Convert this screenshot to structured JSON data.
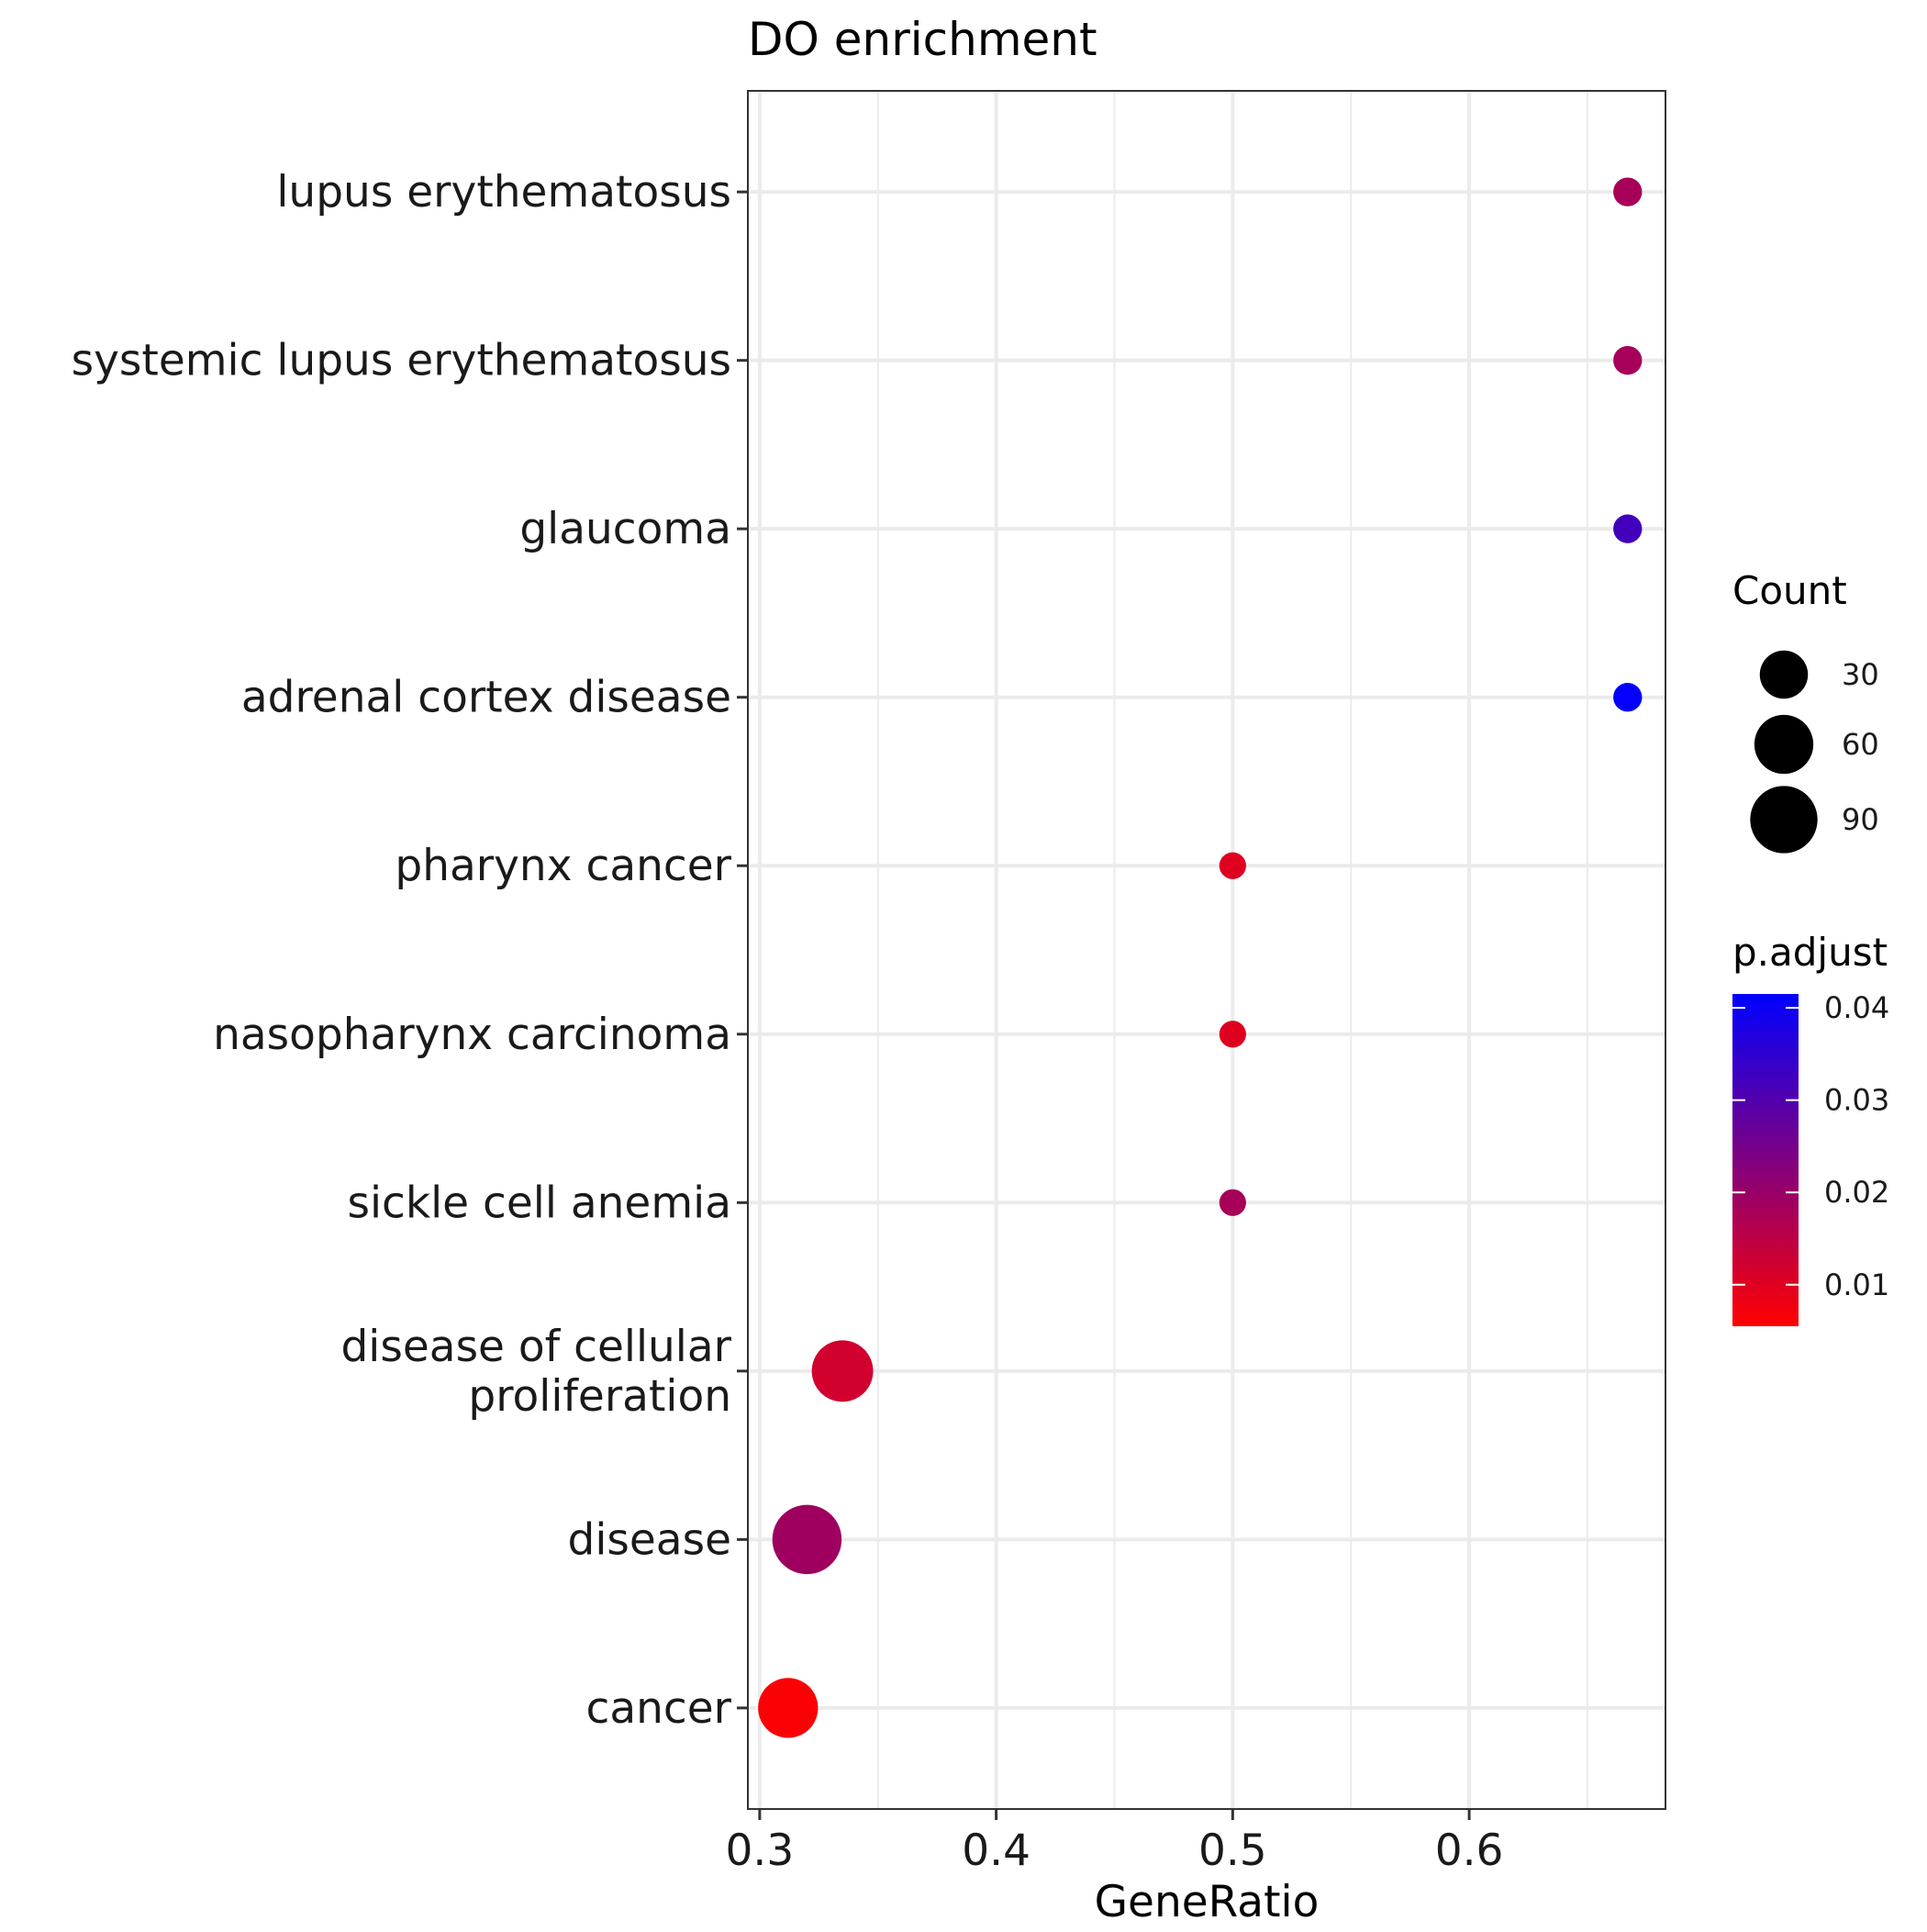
{
  "chart_data": {
    "type": "scatter",
    "title": "DO enrichment",
    "xlabel": "GeneRatio",
    "ylabel": "",
    "xlim": [
      0.295,
      0.683
    ],
    "x_ticks": [
      0.3,
      0.4,
      0.5,
      0.6
    ],
    "x_tick_labels": [
      "0.3",
      "0.4",
      "0.5",
      "0.6"
    ],
    "grid": true,
    "categories": [
      "lupus erythematosus",
      "systemic lupus erythematosus",
      "glaucoma",
      "adrenal cortex disease",
      "pharynx cancer",
      "nasopharynx carcinoma",
      "sickle cell anemia",
      "disease of cellular proliferation",
      "disease",
      "cancer"
    ],
    "category_label_lines": [
      [
        "lupus erythematosus"
      ],
      [
        "systemic lupus erythematosus"
      ],
      [
        "glaucoma"
      ],
      [
        "adrenal cortex disease"
      ],
      [
        "pharynx cancer"
      ],
      [
        "nasopharynx carcinoma"
      ],
      [
        "sickle cell anemia"
      ],
      [
        "disease of cellular",
        "proliferation"
      ],
      [
        "disease"
      ],
      [
        "cancer"
      ]
    ],
    "points": [
      {
        "term": "lupus erythematosus",
        "gene_ratio": 0.667,
        "count": 2,
        "p_adjust": 0.018
      },
      {
        "term": "systemic lupus erythematosus",
        "gene_ratio": 0.667,
        "count": 2,
        "p_adjust": 0.018
      },
      {
        "term": "glaucoma",
        "gene_ratio": 0.667,
        "count": 2,
        "p_adjust": 0.032
      },
      {
        "term": "adrenal cortex disease",
        "gene_ratio": 0.667,
        "count": 2,
        "p_adjust": 0.041
      },
      {
        "term": "pharynx cancer",
        "gene_ratio": 0.5,
        "count": 1,
        "p_adjust": 0.01
      },
      {
        "term": "nasopharynx carcinoma",
        "gene_ratio": 0.5,
        "count": 1,
        "p_adjust": 0.01
      },
      {
        "term": "sickle cell anemia",
        "gene_ratio": 0.5,
        "count": 1,
        "p_adjust": 0.018
      },
      {
        "term": "disease of cellular proliferation",
        "gene_ratio": 0.335,
        "count": 68,
        "p_adjust": 0.012
      },
      {
        "term": "disease",
        "gene_ratio": 0.32,
        "count": 98,
        "p_adjust": 0.019
      },
      {
        "term": "cancer",
        "gene_ratio": 0.312,
        "count": 63,
        "p_adjust": 0.006
      }
    ],
    "size_legend": {
      "title": "Count",
      "breaks": [
        30,
        60,
        90
      ],
      "labels": [
        "30",
        "60",
        "90"
      ]
    },
    "color_legend": {
      "title": "p.adjust",
      "low_color": "#ff0000",
      "high_color": "#0000ff",
      "range": [
        0.0055,
        0.0415
      ],
      "breaks": [
        0.01,
        0.02,
        0.03,
        0.04
      ],
      "labels": [
        "0.01",
        "0.02",
        "0.03",
        "0.04"
      ]
    }
  }
}
